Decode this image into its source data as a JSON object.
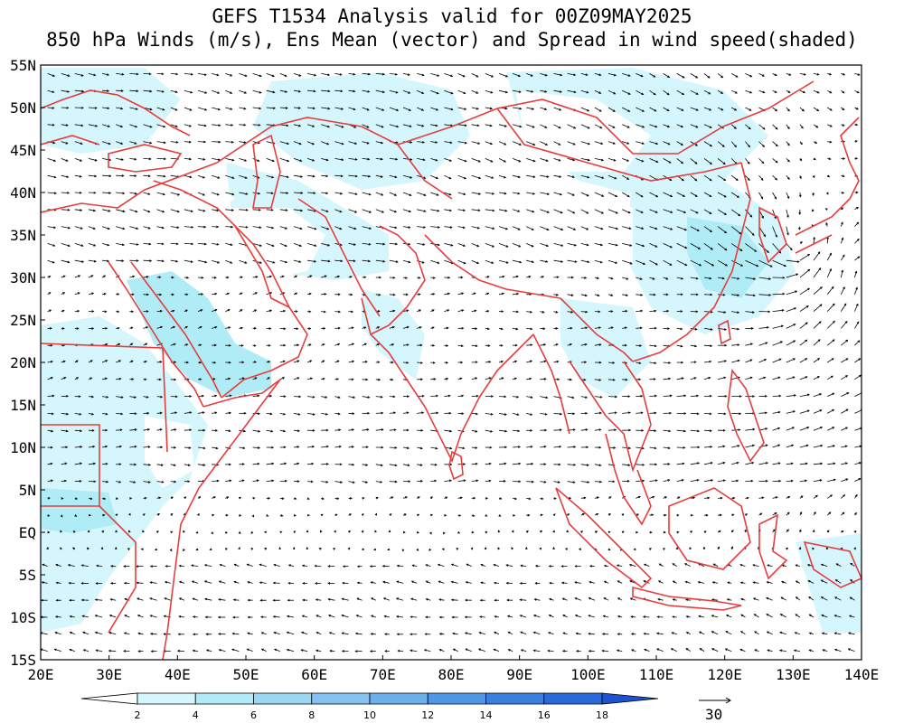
{
  "title": {
    "line1": "GEFS T1534 Analysis valid for 00Z09MAY2025",
    "line2": "850 hPa Winds (m/s), Ens Mean (vector) and Spread in wind speed(shaded)"
  },
  "map": {
    "lon_range": [
      20,
      140
    ],
    "lat_range": [
      -15,
      55
    ],
    "lat_labels": [
      "55N",
      "50N",
      "45N",
      "40N",
      "35N",
      "30N",
      "25N",
      "20N",
      "15N",
      "10N",
      "5N",
      "EQ",
      "5S",
      "10S",
      "15S"
    ],
    "lat_values": [
      55,
      50,
      45,
      40,
      35,
      30,
      25,
      20,
      15,
      10,
      5,
      0,
      -5,
      -10,
      -15
    ],
    "lon_labels": [
      "20E",
      "30E",
      "40E",
      "50E",
      "60E",
      "70E",
      "80E",
      "90E",
      "100E",
      "110E",
      "120E",
      "130E",
      "140E"
    ],
    "lon_values": [
      20,
      30,
      40,
      50,
      60,
      70,
      80,
      90,
      100,
      110,
      120,
      130,
      140
    ],
    "border_color": "#e83c3c",
    "vector_color": "#000000"
  },
  "colorbar": {
    "levels": [
      "2",
      "4",
      "6",
      "8",
      "10",
      "12",
      "14",
      "16",
      "18"
    ],
    "colors": [
      "#ffffff",
      "#d4f6fc",
      "#b0ecf5",
      "#9ad8f2",
      "#85c2f0",
      "#6cb0ec",
      "#5096e6",
      "#3a7ee0",
      "#2b68da",
      "#1e52d0"
    ]
  },
  "reference_vector": {
    "label": "30"
  }
}
